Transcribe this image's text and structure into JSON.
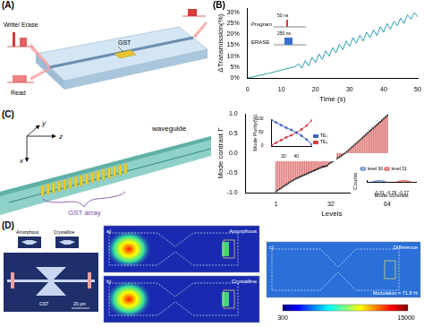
{
  "panel_a": {
    "panel": "(A)",
    "labels": {
      "pulses": "Write/ Erase",
      "read": "Read",
      "material": "GST"
    }
  },
  "chart_data": [
    {
      "type": "line",
      "panel": "(B)",
      "x_label": "Time (s)",
      "y_label": "ΔTransmission(%)",
      "x": [
        0,
        1,
        2,
        3,
        4,
        5,
        6,
        7,
        8,
        9,
        10,
        11,
        12,
        13,
        14,
        15,
        16,
        17,
        18,
        19,
        20,
        21,
        22,
        23,
        24,
        25,
        26,
        27,
        28,
        29,
        30,
        31,
        32,
        33,
        34,
        35,
        36,
        37,
        38,
        39,
        40,
        41,
        42,
        43,
        44,
        45,
        46,
        47,
        48,
        49,
        50
      ],
      "values": [
        0,
        0.3,
        0.6,
        1.0,
        1.3,
        1.7,
        2.0,
        2.4,
        2.8,
        3.2,
        3.6,
        4.0,
        4.4,
        4.8,
        5.2,
        6.5,
        4.5,
        8,
        5.5,
        9.5,
        7,
        11,
        8.5,
        12.5,
        10,
        14,
        11.5,
        15.5,
        13,
        17,
        14.5,
        18.5,
        16,
        19.5,
        17,
        21,
        18.5,
        22,
        19.5,
        23.5,
        21,
        25,
        22.5,
        26,
        24,
        27.5,
        25,
        29,
        27,
        30,
        28
      ],
      "color": "#2a9db0",
      "xlim": [
        0,
        50
      ],
      "xticks": [
        0,
        10,
        20,
        30,
        40,
        50
      ],
      "ylim": [
        0,
        32
      ],
      "yticks": [
        {
          "value": 0,
          "label": "0%"
        },
        {
          "value": 5,
          "label": "5%"
        },
        {
          "value": 10,
          "label": "10%"
        },
        {
          "value": 15,
          "label": "15%"
        },
        {
          "value": 20,
          "label": "20%"
        },
        {
          "value": 25,
          "label": "25%"
        },
        {
          "value": 30,
          "label": "30%"
        }
      ],
      "grid": false,
      "annotations": {
        "program": "Program",
        "program_width": "50 ns",
        "erase": "ERASE",
        "erase_width": "250 ns"
      }
    },
    {
      "type": "bar",
      "panel": "(C)",
      "x_label": "Levels",
      "y_label": "Mode contrast Γ",
      "x": [
        1,
        2,
        3,
        4,
        5,
        6,
        7,
        8,
        9,
        10,
        11,
        12,
        13,
        14,
        15,
        16,
        17,
        18,
        19,
        20,
        21,
        22,
        23,
        24,
        25,
        26,
        27,
        28,
        29,
        30,
        31,
        32,
        33,
        34,
        35,
        36,
        37,
        38,
        39,
        40,
        41,
        42,
        43,
        44,
        45,
        46,
        47,
        48,
        49,
        50,
        51,
        52,
        53,
        54,
        55,
        56,
        57,
        58,
        59,
        60,
        61,
        62,
        63,
        64
      ],
      "values": [
        -0.97,
        -0.94,
        -0.91,
        -0.88,
        -0.85,
        -0.82,
        -0.79,
        -0.76,
        -0.73,
        -0.7,
        -0.68,
        -0.65,
        -0.63,
        -0.61,
        -0.59,
        -0.57,
        -0.55,
        -0.53,
        -0.51,
        -0.49,
        -0.47,
        -0.45,
        -0.43,
        -0.41,
        -0.39,
        -0.37,
        -0.35,
        -0.34,
        -0.33,
        -0.31,
        -0.27,
        -0.24,
        -0.21,
        -0.18,
        -0.15,
        -0.12,
        -0.09,
        -0.06,
        -0.03,
        0.0,
        0.04,
        0.08,
        0.12,
        0.16,
        0.2,
        0.24,
        0.28,
        0.32,
        0.36,
        0.4,
        0.44,
        0.48,
        0.52,
        0.56,
        0.6,
        0.64,
        0.68,
        0.72,
        0.76,
        0.8,
        0.84,
        0.88,
        0.92,
        0.96
      ],
      "color": "#e07a7a",
      "marker": "square",
      "xlim": [
        0,
        65
      ],
      "xticks": [
        1,
        32,
        64
      ],
      "ylim": [
        -1,
        1
      ],
      "yticks": [
        {
          "value": -1,
          "label": "-1.0"
        },
        {
          "value": -0.5,
          "label": "-0.5"
        },
        {
          "value": 0,
          "label": "0.0"
        },
        {
          "value": 0.5,
          "label": "0.5"
        },
        {
          "value": 1,
          "label": "1.0"
        }
      ],
      "grid": false
    },
    {
      "type": "line",
      "y_label": "Mode Purity(%)",
      "x": [
        1,
        8,
        16,
        24,
        32,
        40,
        48,
        56,
        64
      ],
      "series": [
        {
          "name": "TE₀",
          "color": "#3b5fc0",
          "values": [
            97,
            88,
            78,
            68,
            60,
            50,
            38,
            24,
            5
          ]
        },
        {
          "name": "TE₁",
          "color": "#d04040",
          "values": [
            3,
            12,
            22,
            32,
            40,
            50,
            62,
            76,
            95
          ]
        }
      ],
      "xlim": [
        1,
        64
      ],
      "xticks": [
        20,
        40
      ],
      "ylim": [
        0,
        100
      ],
      "yticks": [
        0,
        50,
        100
      ],
      "legend": "right",
      "grid": false
    },
    {
      "type": "area",
      "x_label": "Mode contrast",
      "y_label": "Counts",
      "series": [
        {
          "name": "level 30",
          "color": "#4a6fc2",
          "x": [
            -0.325,
            -0.32,
            -0.315,
            -0.31,
            -0.305,
            -0.3,
            -0.295
          ],
          "values": [
            2,
            8,
            20,
            30,
            20,
            8,
            2
          ]
        },
        {
          "name": "level 31",
          "color": "#d9473f",
          "x": [
            -0.285,
            -0.28,
            -0.275,
            -0.27,
            -0.265,
            -0.26,
            -0.255
          ],
          "values": [
            2,
            8,
            20,
            30,
            20,
            8,
            2
          ]
        }
      ],
      "xlim": [
        -0.33,
        -0.25
      ],
      "xticks": [
        -0.31,
        -0.29,
        -0.27
      ],
      "ylim": [
        0,
        32
      ],
      "tick_labels": "x",
      "legend": "top",
      "grid": false
    }
  ],
  "panel_c_diagram": {
    "axes": [
      "y",
      "x",
      "z"
    ],
    "waveguide": "waveguide",
    "array": "GST array"
  },
  "panel_d": {
    "panel": "(D)",
    "schematic": {
      "states": [
        "Amorphous",
        "Crystalline"
      ],
      "material": "GST",
      "scale": "20 μm"
    },
    "maps": [
      {
        "tag": "a)",
        "state": "Amorphous"
      },
      {
        "tag": "b)",
        "state": "Crystalline"
      },
      {
        "tag": "c)",
        "state": "Difference",
        "note": "Modulation = 71.8 %"
      }
    ],
    "colorbar_ticks": [
      300,
      15000
    ]
  }
}
